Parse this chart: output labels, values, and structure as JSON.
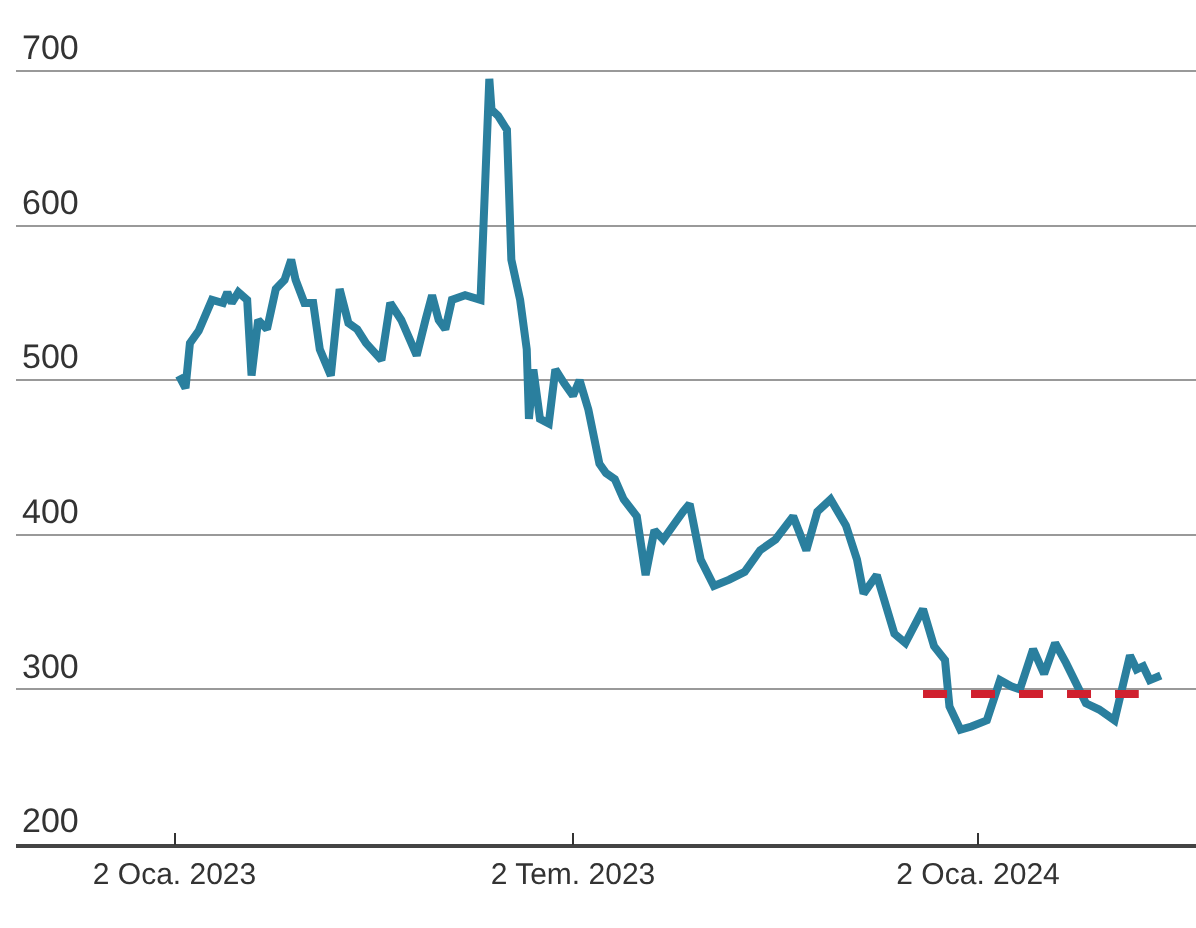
{
  "chart_data": {
    "type": "line",
    "xlim": [
      "2022-10-22",
      "2024-04-10"
    ],
    "xticks": [
      {
        "value": "2023-01-02",
        "label": "2 Oca. 2023"
      },
      {
        "value": "2023-07-02",
        "label": "2 Tem. 2023"
      },
      {
        "value": "2024-01-02",
        "label": "2 Oca. 2024"
      }
    ],
    "ylim": [
      200,
      746
    ],
    "yticks": [
      200,
      300,
      400,
      500,
      600,
      700
    ],
    "grid": "y",
    "marker": "none",
    "series": [
      {
        "color": "#2a7f9e",
        "line_style": "solid",
        "x": [
          "2023-01-04",
          "2023-01-07",
          "2023-01-09",
          "2023-01-13",
          "2023-01-16",
          "2023-01-19",
          "2023-01-24",
          "2023-01-26",
          "2023-01-28",
          "2023-01-31",
          "2023-02-04",
          "2023-02-06",
          "2023-02-09",
          "2023-02-13",
          "2023-02-15",
          "2023-02-17",
          "2023-02-21",
          "2023-02-24",
          "2023-02-26",
          "2023-03-02",
          "2023-03-06",
          "2023-03-09",
          "2023-03-14",
          "2023-03-18",
          "2023-03-22",
          "2023-03-26",
          "2023-03-30",
          "2023-04-06",
          "2023-04-10",
          "2023-04-15",
          "2023-04-19",
          "2023-04-22",
          "2023-04-26",
          "2023-04-29",
          "2023-05-02",
          "2023-05-05",
          "2023-05-08",
          "2023-05-14",
          "2023-05-21",
          "2023-05-25",
          "2023-05-26",
          "2023-05-29",
          "2023-06-02",
          "2023-06-04",
          "2023-06-08",
          "2023-06-11",
          "2023-06-12",
          "2023-06-14",
          "2023-06-17",
          "2023-06-21",
          "2023-06-24",
          "2023-06-28",
          "2023-07-02",
          "2023-07-05",
          "2023-07-09",
          "2023-07-14",
          "2023-07-17",
          "2023-07-21",
          "2023-07-25",
          "2023-07-31",
          "2023-08-04",
          "2023-08-08",
          "2023-08-12",
          "2023-08-17",
          "2023-08-21",
          "2023-08-24",
          "2023-08-29",
          "2023-09-04",
          "2023-09-11",
          "2023-09-18",
          "2023-09-25",
          "2023-10-02",
          "2023-10-10",
          "2023-10-16",
          "2023-10-21",
          "2023-10-27",
          "2023-11-03",
          "2023-11-08",
          "2023-11-11",
          "2023-11-17",
          "2023-11-25",
          "2023-11-30",
          "2023-12-08",
          "2023-12-13",
          "2023-12-18",
          "2023-12-20",
          "2023-12-25",
          "2023-12-30",
          "2024-01-06",
          "2024-01-12",
          "2024-01-17",
          "2024-01-21",
          "2024-01-27",
          "2024-02-01",
          "2024-02-06",
          "2024-02-11",
          "2024-02-20",
          "2024-02-26",
          "2024-03-04",
          "2024-03-11",
          "2024-03-14",
          "2024-03-17",
          "2024-03-20",
          "2024-03-25"
        ],
        "values": [
          503,
          495,
          524,
          532,
          542,
          552,
          550,
          557,
          550,
          557,
          552,
          503,
          539,
          533,
          546,
          559,
          565,
          578,
          565,
          550,
          550,
          520,
          503,
          559,
          537,
          533,
          524,
          513,
          550,
          539,
          526,
          516,
          539,
          555,
          539,
          533,
          552,
          555,
          552,
          695,
          675,
          671,
          662,
          578,
          552,
          520,
          475,
          507,
          475,
          472,
          507,
          498,
          490,
          500,
          481,
          446,
          440,
          436,
          423,
          412,
          374,
          403,
          397,
          407,
          415,
          420,
          384,
          367,
          371,
          376,
          390,
          397,
          412,
          390,
          415,
          423,
          406,
          384,
          362,
          374,
          336,
          330,
          352,
          328,
          319,
          289,
          274,
          276,
          280,
          306,
          302,
          300,
          326,
          310,
          330,
          317,
          291,
          287,
          280,
          322,
          313,
          315,
          306,
          309
        ]
      },
      {
        "color": "#d0202e",
        "line_style": "dashed",
        "x": [
          "2023-12-08",
          "2024-03-15"
        ],
        "values": [
          297,
          297
        ]
      }
    ]
  }
}
